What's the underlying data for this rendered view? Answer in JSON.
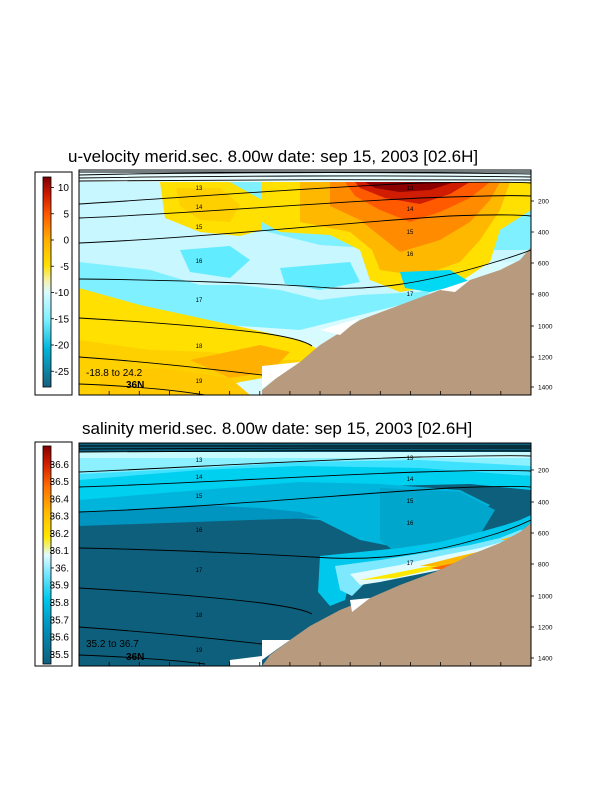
{
  "chart_data": [
    {
      "type": "heatmap",
      "title": "u-velocity merid.sec.  8.00w   date: sep 15, 2003   [02.6H]",
      "variable": "u-velocity",
      "colorbar": {
        "ticks": [
          "10",
          "5",
          "0",
          "-5",
          "-10",
          "-15",
          "-20",
          "-25"
        ],
        "tick_values": [
          10,
          5,
          0,
          -5,
          -10,
          -15,
          -20,
          -25
        ],
        "range": [
          -28,
          12
        ]
      },
      "range_text": "-18.8 to  24.2",
      "lat_label": "36N",
      "depth_ticks": [
        "200",
        "400",
        "600",
        "800",
        "1000",
        "1200",
        "1400"
      ],
      "depth_tick_values": [
        200,
        400,
        600,
        800,
        1000,
        1200,
        1400
      ],
      "layer_labels": [
        "13",
        "14",
        "15",
        "16",
        "17",
        "18",
        "19"
      ],
      "colors": {
        "land": "#b89a7e",
        "contour": "#000000",
        "frame": "#000000"
      }
    },
    {
      "type": "heatmap",
      "title": "salinity merid.sec.  8.00w   date: sep 15, 2003   [02.6H]",
      "variable": "salinity",
      "colorbar": {
        "ticks": [
          "36.6",
          "36.5",
          "36.4",
          "36.3",
          "36.2",
          "36.1",
          "36.",
          "35.9",
          "35.8",
          "35.7",
          "35.6",
          "35.5"
        ],
        "tick_values": [
          36.6,
          36.5,
          36.4,
          36.3,
          36.2,
          36.1,
          36.0,
          35.9,
          35.8,
          35.7,
          35.6,
          35.5
        ],
        "range": [
          35.45,
          36.7
        ]
      },
      "range_text": "35.2 to  36.7",
      "lat_label": "36N",
      "depth_ticks": [
        "200",
        "400",
        "600",
        "800",
        "1000",
        "1200",
        "1400"
      ],
      "depth_tick_values": [
        200,
        400,
        600,
        800,
        1000,
        1200,
        1400
      ],
      "layer_labels": [
        "13",
        "14",
        "15",
        "16",
        "17",
        "18",
        "19"
      ],
      "colors": {
        "land": "#b89a7e",
        "contour": "#000000",
        "frame": "#000000"
      }
    }
  ]
}
